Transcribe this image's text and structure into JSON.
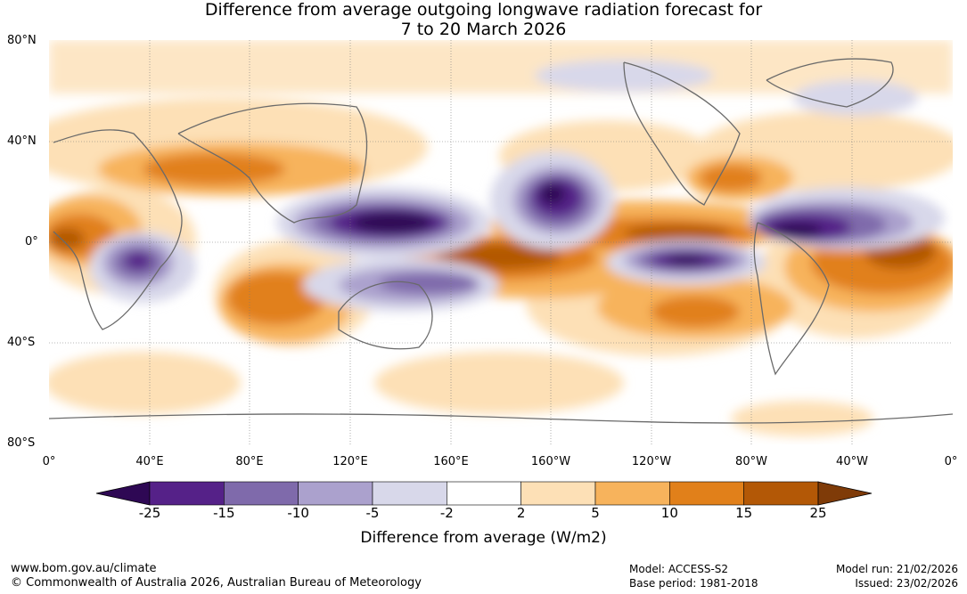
{
  "title_line1": "Difference from average outgoing longwave radiation forecast for",
  "title_line2": "7 to 20 March 2026",
  "lat_labels": [
    "80°N",
    "40°N",
    "0°",
    "40°S",
    "80°S"
  ],
  "lon_labels": [
    "0°",
    "40°E",
    "80°E",
    "120°E",
    "160°E",
    "160°W",
    "120°W",
    "80°W",
    "40°W",
    "0°"
  ],
  "colorbar": {
    "title": "Difference from average (W/m2)",
    "boundaries": [
      "-25",
      "-15",
      "-10",
      "-5",
      "-2",
      "2",
      "5",
      "10",
      "15",
      "25"
    ],
    "colors": [
      "#2e0854",
      "#552188",
      "#7f6aab",
      "#aba1cd",
      "#d8d8ea",
      "#ffffff",
      "#fde0b6",
      "#f7b35c",
      "#e1801a",
      "#b35806",
      "#7f3b08"
    ]
  },
  "footer": {
    "website": "www.bom.gov.au/climate",
    "copyright": "© Commonwealth of Australia 2026, Australian Bureau of Meteorology",
    "model": "Model: ACCESS-S2",
    "base_period": "Base period: 1981-2018",
    "model_run": "Model run: 21/02/2026",
    "issued": "Issued: 23/02/2026"
  }
}
